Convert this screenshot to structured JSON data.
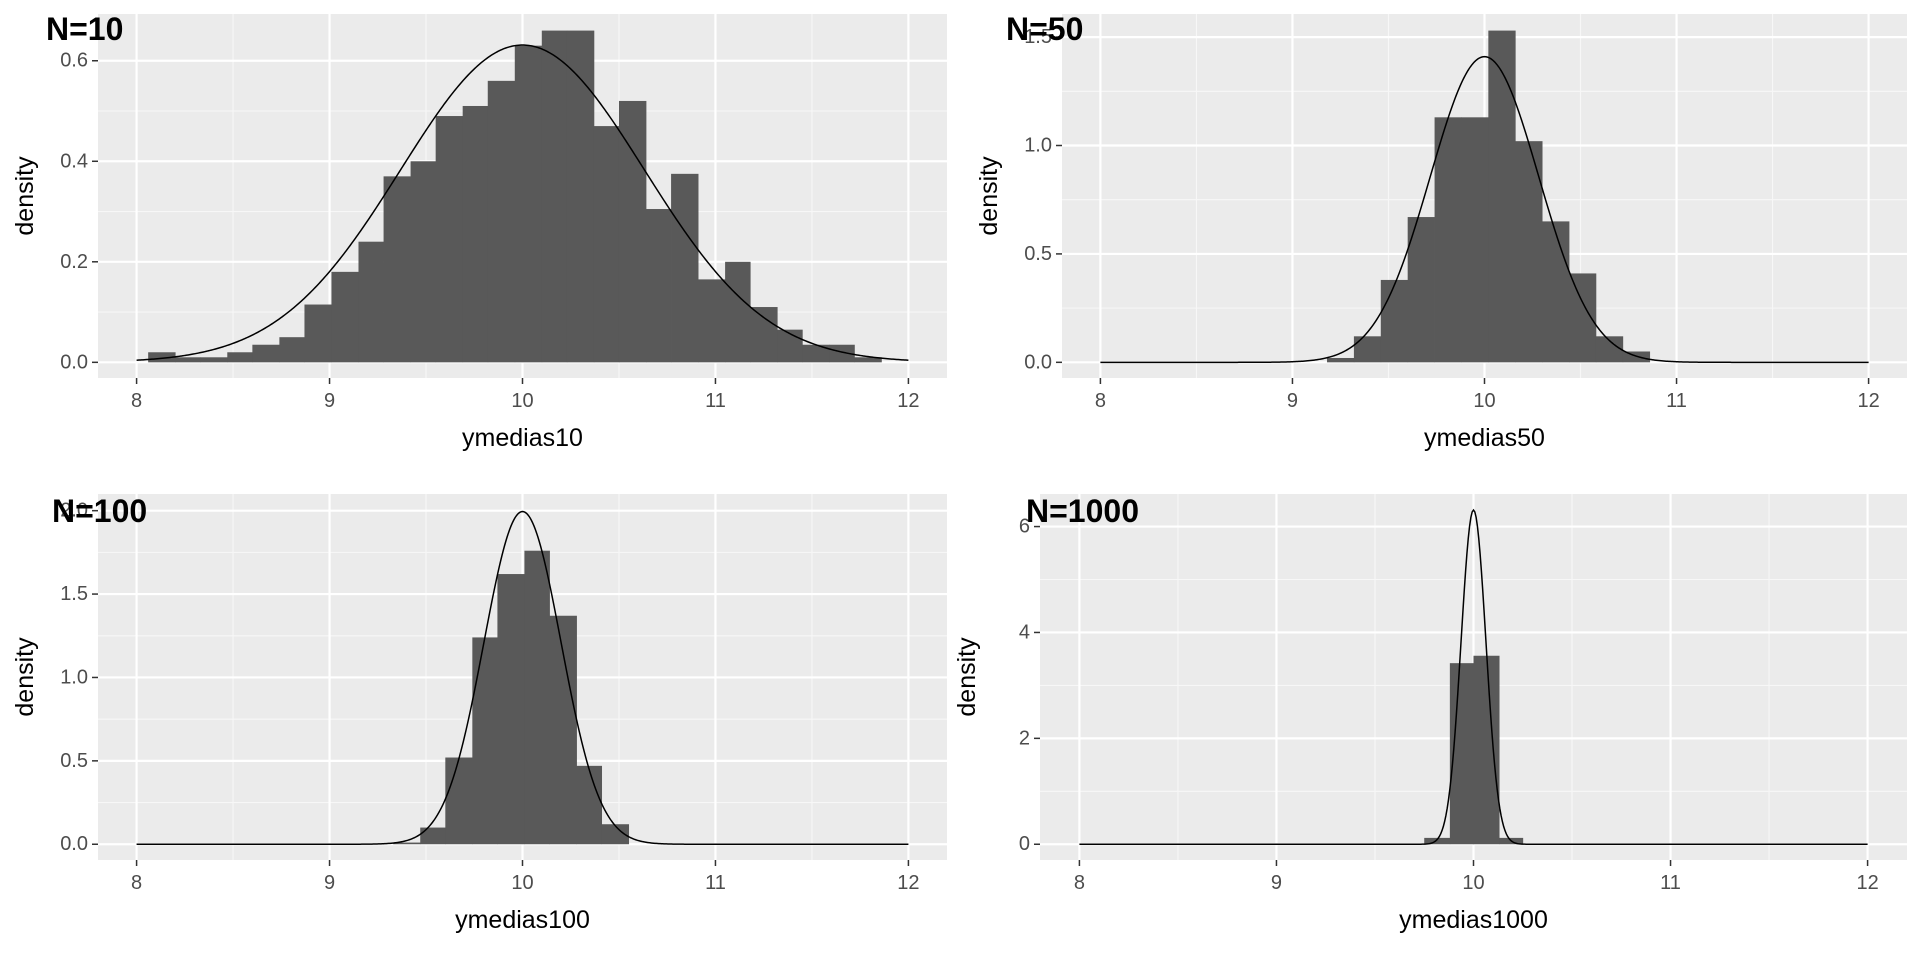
{
  "chart_data": [
    {
      "type": "histogram",
      "tag": "N=10",
      "xlabel": "ymedias10",
      "ylabel": "density",
      "xlim": [
        7.8,
        12.2
      ],
      "ylim": [
        0,
        0.66
      ],
      "xticks": [
        8,
        9,
        10,
        11,
        12
      ],
      "yticks": [
        0.0,
        0.2,
        0.4,
        0.6
      ],
      "ytick_labels": [
        "0.0",
        "0.2",
        "0.4",
        "0.6"
      ],
      "density_curve": {
        "mean": 10.0,
        "sd": 0.632
      },
      "bins": [
        {
          "x0": 8.06,
          "x1": 8.2,
          "y": 0.02
        },
        {
          "x0": 8.2,
          "x1": 8.33,
          "y": 0.01
        },
        {
          "x0": 8.33,
          "x1": 8.47,
          "y": 0.01
        },
        {
          "x0": 8.47,
          "x1": 8.6,
          "y": 0.02
        },
        {
          "x0": 8.6,
          "x1": 8.74,
          "y": 0.035
        },
        {
          "x0": 8.74,
          "x1": 8.87,
          "y": 0.05
        },
        {
          "x0": 8.87,
          "x1": 9.01,
          "y": 0.115
        },
        {
          "x0": 9.01,
          "x1": 9.15,
          "y": 0.18
        },
        {
          "x0": 9.15,
          "x1": 9.28,
          "y": 0.24
        },
        {
          "x0": 9.28,
          "x1": 9.42,
          "y": 0.37
        },
        {
          "x0": 9.42,
          "x1": 9.55,
          "y": 0.4
        },
        {
          "x0": 9.55,
          "x1": 9.69,
          "y": 0.49
        },
        {
          "x0": 9.69,
          "x1": 9.82,
          "y": 0.51
        },
        {
          "x0": 9.82,
          "x1": 9.96,
          "y": 0.56
        },
        {
          "x0": 9.96,
          "x1": 10.1,
          "y": 0.63
        },
        {
          "x0": 10.1,
          "x1": 10.23,
          "y": 0.66
        },
        {
          "x0": 10.23,
          "x1": 10.37,
          "y": 0.66
        },
        {
          "x0": 10.37,
          "x1": 10.5,
          "y": 0.47
        },
        {
          "x0": 10.5,
          "x1": 10.64,
          "y": 0.52
        },
        {
          "x0": 10.64,
          "x1": 10.77,
          "y": 0.305
        },
        {
          "x0": 10.77,
          "x1": 10.91,
          "y": 0.375
        },
        {
          "x0": 10.91,
          "x1": 11.05,
          "y": 0.165
        },
        {
          "x0": 11.05,
          "x1": 11.18,
          "y": 0.2
        },
        {
          "x0": 11.18,
          "x1": 11.32,
          "y": 0.11
        },
        {
          "x0": 11.32,
          "x1": 11.45,
          "y": 0.065
        },
        {
          "x0": 11.45,
          "x1": 11.59,
          "y": 0.035
        },
        {
          "x0": 11.59,
          "x1": 11.72,
          "y": 0.035
        },
        {
          "x0": 11.72,
          "x1": 11.86,
          "y": 0.01
        }
      ]
    },
    {
      "type": "histogram",
      "tag": "N=50",
      "xlabel": "ymedias50",
      "ylabel": "density",
      "xlim": [
        7.8,
        12.2
      ],
      "ylim": [
        0,
        1.53
      ],
      "xticks": [
        8,
        9,
        10,
        11,
        12
      ],
      "yticks": [
        0.0,
        0.5,
        1.0,
        1.5
      ],
      "ytick_labels": [
        "0.0",
        "0.5",
        "1.0",
        "1.5"
      ],
      "density_curve": {
        "mean": 10.0,
        "sd": 0.283
      },
      "bins": [
        {
          "x0": 9.18,
          "x1": 9.32,
          "y": 0.02
        },
        {
          "x0": 9.32,
          "x1": 9.46,
          "y": 0.12
        },
        {
          "x0": 9.46,
          "x1": 9.6,
          "y": 0.38
        },
        {
          "x0": 9.6,
          "x1": 9.74,
          "y": 0.67
        },
        {
          "x0": 9.74,
          "x1": 9.88,
          "y": 1.13
        },
        {
          "x0": 9.88,
          "x1": 10.02,
          "y": 1.13
        },
        {
          "x0": 10.02,
          "x1": 10.16,
          "y": 1.53
        },
        {
          "x0": 10.16,
          "x1": 10.3,
          "y": 1.02
        },
        {
          "x0": 10.3,
          "x1": 10.44,
          "y": 0.65
        },
        {
          "x0": 10.44,
          "x1": 10.58,
          "y": 0.41
        },
        {
          "x0": 10.58,
          "x1": 10.72,
          "y": 0.12
        },
        {
          "x0": 10.72,
          "x1": 10.86,
          "y": 0.05
        }
      ]
    },
    {
      "type": "histogram",
      "tag": "N=100",
      "xlabel": "ymedias100",
      "ylabel": "density",
      "xlim": [
        7.8,
        12.2
      ],
      "ylim": [
        0,
        2.0
      ],
      "xticks": [
        8,
        9,
        10,
        11,
        12
      ],
      "yticks": [
        0.0,
        0.5,
        1.0,
        1.5,
        2.0
      ],
      "ytick_labels": [
        "0.0",
        "0.5",
        "1.0",
        "1.5",
        "2.0"
      ],
      "density_curve": {
        "mean": 10.0,
        "sd": 0.2
      },
      "bins": [
        {
          "x0": 9.33,
          "x1": 9.47,
          "y": 0.01
        },
        {
          "x0": 9.47,
          "x1": 9.6,
          "y": 0.1
        },
        {
          "x0": 9.6,
          "x1": 9.74,
          "y": 0.52
        },
        {
          "x0": 9.74,
          "x1": 9.87,
          "y": 1.24
        },
        {
          "x0": 9.87,
          "x1": 10.01,
          "y": 1.62
        },
        {
          "x0": 10.01,
          "x1": 10.14,
          "y": 1.76
        },
        {
          "x0": 10.14,
          "x1": 10.28,
          "y": 1.37
        },
        {
          "x0": 10.28,
          "x1": 10.41,
          "y": 0.47
        },
        {
          "x0": 10.41,
          "x1": 10.55,
          "y": 0.12
        }
      ]
    },
    {
      "type": "histogram",
      "tag": "N=1000",
      "xlabel": "ymedias1000",
      "ylabel": "density",
      "xlim": [
        7.8,
        12.2
      ],
      "ylim": [
        0,
        6.3
      ],
      "xticks": [
        8,
        9,
        10,
        11,
        12
      ],
      "yticks": [
        0,
        2,
        4,
        6
      ],
      "ytick_labels": [
        "0",
        "2",
        "4",
        "6"
      ],
      "density_curve": {
        "mean": 10.0,
        "sd": 0.0632
      },
      "bins": [
        {
          "x0": 9.75,
          "x1": 9.88,
          "y": 0.12
        },
        {
          "x0": 9.88,
          "x1": 10.0,
          "y": 3.42
        },
        {
          "x0": 10.0,
          "x1": 10.13,
          "y": 3.56
        },
        {
          "x0": 10.13,
          "x1": 10.25,
          "y": 0.12
        }
      ]
    }
  ]
}
